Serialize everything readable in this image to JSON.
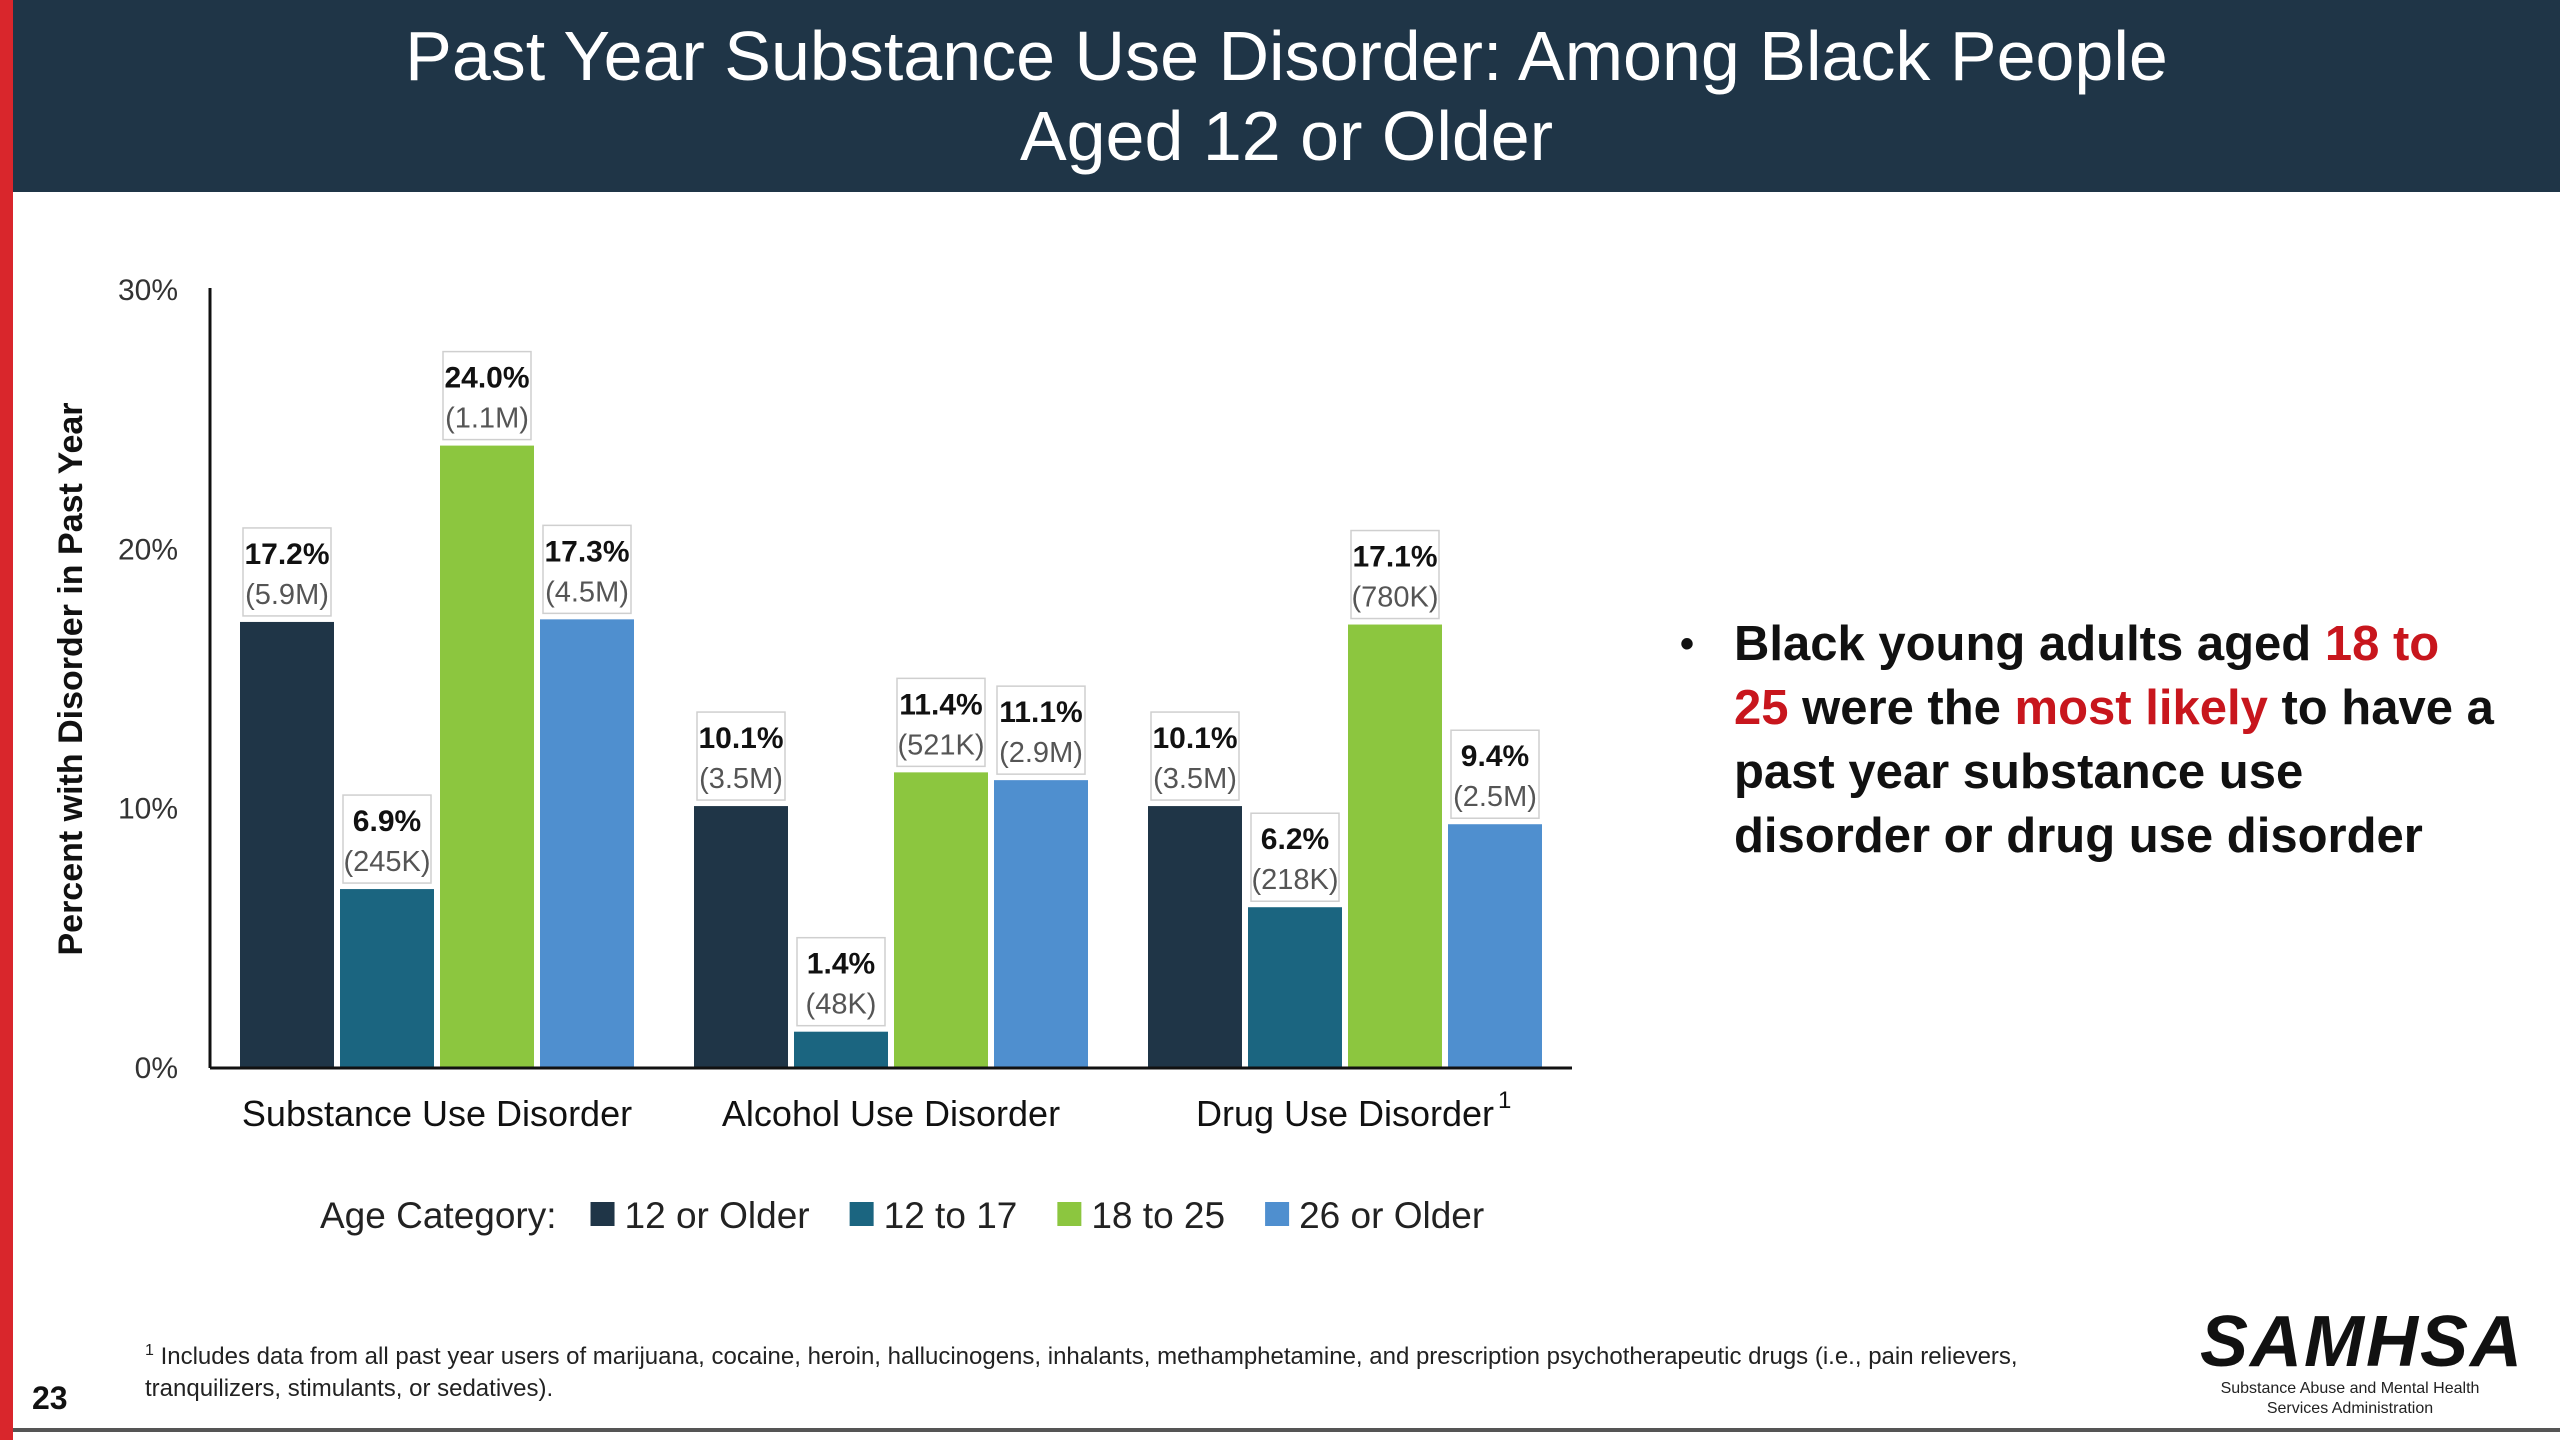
{
  "header": {
    "title_line1": "Past Year Substance Use Disorder: Among Black People",
    "title_line2": "Aged 12 or Older"
  },
  "chart_data": {
    "type": "bar",
    "ylabel": "Percent with Disorder in Past Year",
    "ylim": [
      0,
      30
    ],
    "yticks": [
      "0%",
      "10%",
      "20%",
      "30%"
    ],
    "categories": [
      "Substance Use Disorder",
      "Alcohol Use Disorder",
      "Drug Use Disorder"
    ],
    "category_superscripts": [
      "",
      "",
      "1"
    ],
    "legend_title": "Age Category:",
    "legend_position": "bottom",
    "series": [
      {
        "name": "12 or Older",
        "color": "#1f3547",
        "values": [
          17.2,
          10.1,
          10.1
        ],
        "labels": [
          "17.2%",
          "10.1%",
          "10.1%"
        ],
        "counts": [
          "(5.9M)",
          "(3.5M)",
          "(3.5M)"
        ]
      },
      {
        "name": "12 to 17",
        "color": "#1b6580",
        "values": [
          6.9,
          1.4,
          6.2
        ],
        "labels": [
          "6.9%",
          "1.4%",
          "6.2%"
        ],
        "counts": [
          "(245K)",
          "(48K)",
          "(218K)"
        ]
      },
      {
        "name": "18 to 25",
        "color": "#8cc63f",
        "values": [
          24.0,
          11.4,
          17.1
        ],
        "labels": [
          "24.0%",
          "11.4%",
          "17.1%"
        ],
        "counts": [
          "(1.1M)",
          "(521K)",
          "(780K)"
        ]
      },
      {
        "name": "26 or Older",
        "color": "#4f8fcf",
        "values": [
          17.3,
          11.1,
          9.4
        ],
        "labels": [
          "17.3%",
          "11.1%",
          "9.4%"
        ],
        "counts": [
          "(4.5M)",
          "(2.9M)",
          "(2.5M)"
        ]
      }
    ]
  },
  "bullet": {
    "part1": "Black young adults aged ",
    "part2": "18 to 25",
    "part3": " were the ",
    "part4": "most likely",
    "part5": " to have a past year substance use disorder or drug use disorder"
  },
  "footnote": {
    "marker": "1",
    "text": "Includes data from all past year users of marijuana, cocaine, heroin, hallucinogens, inhalants, methamphetamine, and prescription psychotherapeutic drugs (i.e., pain relievers, tranquilizers, stimulants, or sedatives)."
  },
  "page_number": "23",
  "logo": {
    "mark": "SAMHSA",
    "subtitle_line1": "Substance Abuse and Mental Health",
    "subtitle_line2": "Services Administration"
  }
}
